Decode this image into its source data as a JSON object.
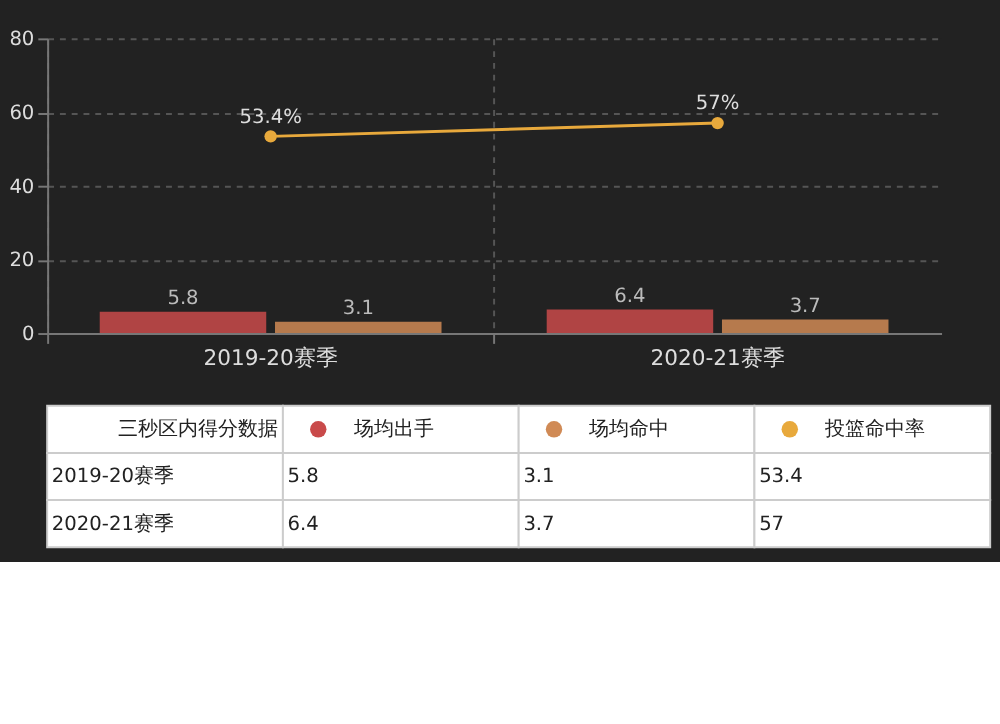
{
  "chart_data": {
    "type": "bar",
    "legend_title": "三秒区内得分数据",
    "categories": [
      "2019-20赛季",
      "2020-21赛季"
    ],
    "series": [
      {
        "name": "场均出手",
        "color": "#c94a4a",
        "values": [
          5.8,
          6.4
        ],
        "value_labels": [
          "5.8",
          "6.4"
        ]
      },
      {
        "name": "场均命中",
        "color": "#d08a55",
        "values": [
          3.1,
          3.7
        ],
        "value_labels": [
          "3.1",
          "3.7"
        ]
      },
      {
        "name": "投篮命中率",
        "type": "line",
        "color": "#e8a93c",
        "marker": "circle",
        "values": [
          53.4,
          57
        ],
        "value_labels": [
          "53.4%",
          "57%"
        ]
      }
    ],
    "annotations": [
      "5.8",
      "3.1",
      "53.4",
      "6.4",
      "3.7",
      "57"
    ],
    "ylim": [
      0,
      80
    ],
    "yticks": [
      0,
      20,
      40,
      60,
      80
    ],
    "grid": true,
    "data_labels": true,
    "legend": "bottom"
  }
}
